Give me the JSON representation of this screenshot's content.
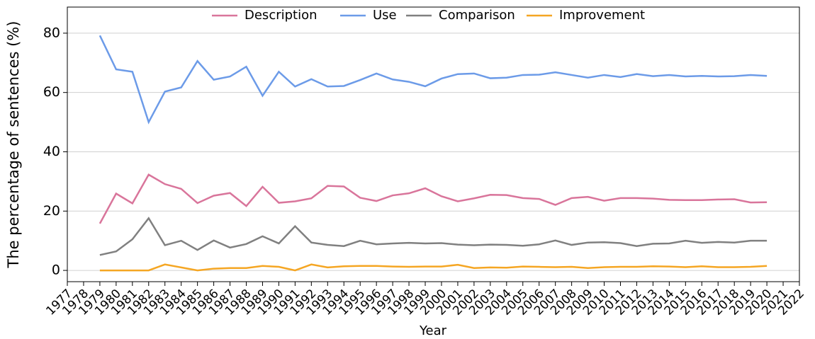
{
  "chart_data": {
    "type": "line",
    "xlabel": "Year",
    "ylabel": "The percentage of sentences (%)",
    "x": [
      1979,
      1980,
      1981,
      1982,
      1983,
      1984,
      1985,
      1986,
      1987,
      1988,
      1989,
      1990,
      1991,
      1992,
      1993,
      1994,
      1995,
      1996,
      1997,
      1998,
      1999,
      2000,
      2001,
      2002,
      2003,
      2004,
      2005,
      2006,
      2007,
      2008,
      2009,
      2010,
      2011,
      2012,
      2013,
      2014,
      2015,
      2016,
      2017,
      2018,
      2019,
      2020
    ],
    "series": [
      {
        "name": "Description",
        "color": "#d9759b",
        "values": [
          15.8,
          25.9,
          22.6,
          32.3,
          29.1,
          27.5,
          22.7,
          25.2,
          26.1,
          21.7,
          28.2,
          22.8,
          23.3,
          24.3,
          28.5,
          28.3,
          24.5,
          23.4,
          25.3,
          26,
          27.7,
          25,
          23.3,
          24.3,
          25.5,
          25.4,
          24.4,
          24.1,
          22.1,
          24.4,
          24.8,
          23.5,
          24.4,
          24.4,
          24.2,
          23.8,
          23.7,
          23.7,
          23.9,
          24,
          22.9,
          23
        ]
      },
      {
        "name": "Use",
        "color": "#6c9be8",
        "values": [
          79.2,
          67.8,
          67,
          50,
          60.3,
          61.7,
          70.6,
          64.3,
          65.4,
          68.7,
          58.9,
          67,
          62,
          64.5,
          62,
          62.2,
          64.2,
          66.4,
          64.4,
          63.6,
          62.1,
          64.7,
          66.2,
          66.4,
          64.8,
          65,
          65.9,
          66,
          66.8,
          65.9,
          65,
          65.9,
          65.2,
          66.2,
          65.5,
          65.9,
          65.4,
          65.6,
          65.4,
          65.5,
          65.9,
          65.6
        ]
      },
      {
        "name": "Comparison",
        "color": "#808080",
        "values": [
          5.2,
          6.4,
          10.5,
          17.6,
          8.5,
          10,
          6.9,
          10.1,
          7.7,
          8.9,
          11.5,
          9.1,
          14.9,
          9.4,
          8.6,
          8.2,
          10,
          8.8,
          9.1,
          9.3,
          9.1,
          9.2,
          8.7,
          8.5,
          8.7,
          8.6,
          8.3,
          8.8,
          10.1,
          8.6,
          9.4,
          9.5,
          9.2,
          8.2,
          9,
          9.1,
          10,
          9.3,
          9.6,
          9.4,
          10,
          10
        ]
      },
      {
        "name": "Improvement",
        "color": "#f5a623",
        "values": [
          0,
          0,
          0,
          0,
          2,
          1,
          0,
          0.6,
          0.8,
          0.8,
          1.5,
          1.2,
          0,
          2,
          1,
          1.4,
          1.5,
          1.5,
          1.3,
          1.2,
          1.3,
          1.3,
          1.9,
          0.8,
          1,
          0.9,
          1.3,
          1.2,
          1.1,
          1.2,
          0.8,
          1.1,
          1.2,
          1.2,
          1.4,
          1.3,
          1.1,
          1.4,
          1.1,
          1.1,
          1.2,
          1.5
        ]
      }
    ],
    "xlim": [
      1977,
      2022
    ],
    "xticks": [
      1977,
      1978,
      1979,
      1980,
      1981,
      1982,
      1983,
      1984,
      1985,
      1986,
      1987,
      1988,
      1989,
      1990,
      1991,
      1992,
      1993,
      1994,
      1995,
      1996,
      1997,
      1998,
      1999,
      2000,
      2001,
      2002,
      2003,
      2004,
      2005,
      2006,
      2007,
      2008,
      2009,
      2010,
      2011,
      2012,
      2013,
      2014,
      2015,
      2016,
      2017,
      2018,
      2019,
      2020,
      2021,
      2022
    ],
    "ylim": [
      -3.8,
      88.8
    ],
    "yticks": [
      0,
      20,
      40,
      60,
      80
    ],
    "grid": "y",
    "legend": "upper center"
  }
}
